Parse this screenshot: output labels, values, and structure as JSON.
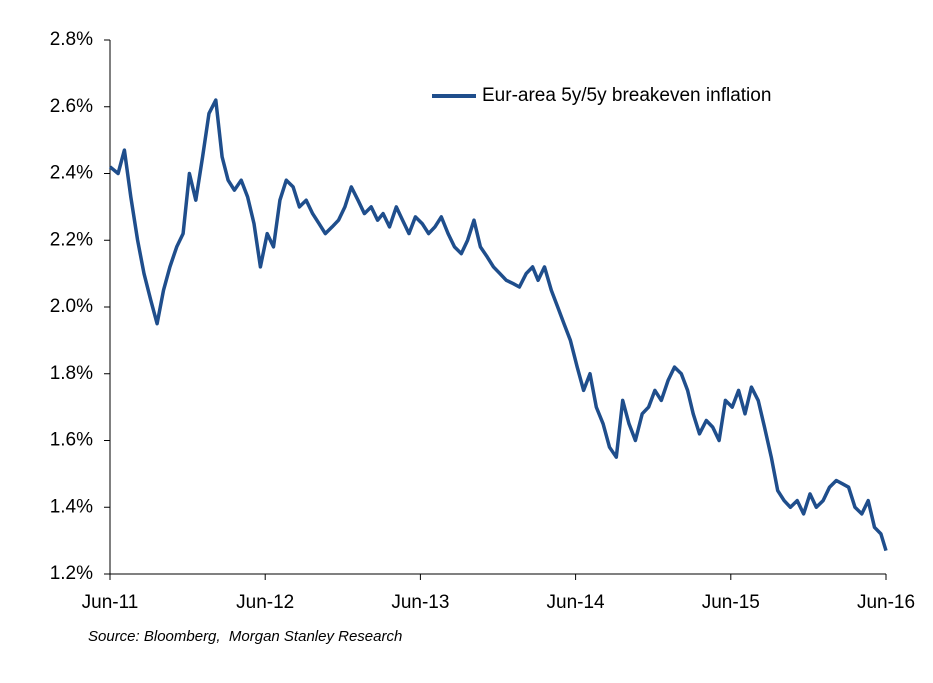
{
  "chart_data": {
    "type": "line",
    "title": "",
    "xlabel": "",
    "ylabel": "",
    "ylim": [
      1.2,
      2.8
    ],
    "yticks": [
      "1.2%",
      "1.4%",
      "1.6%",
      "1.8%",
      "2.0%",
      "2.2%",
      "2.4%",
      "2.6%",
      "2.8%"
    ],
    "xticks": [
      "Jun-11",
      "Jun-12",
      "Jun-13",
      "Jun-14",
      "Jun-15",
      "Jun-16"
    ],
    "xlim": [
      "2011-06",
      "2016-06"
    ],
    "grid": false,
    "legend": "top-right",
    "series": [
      {
        "name": "Eur-area 5y/5y breakeven inflation",
        "color": "#1f4e8c",
        "x": [
          "2011-06-01",
          "2011-06-20",
          "2011-07-05",
          "2011-07-20",
          "2011-08-05",
          "2011-08-20",
          "2011-09-05",
          "2011-09-20",
          "2011-10-05",
          "2011-10-20",
          "2011-11-05",
          "2011-11-20",
          "2011-12-05",
          "2011-12-20",
          "2012-01-05",
          "2012-01-20",
          "2012-02-05",
          "2012-02-20",
          "2012-03-05",
          "2012-03-20",
          "2012-04-05",
          "2012-04-20",
          "2012-05-05",
          "2012-05-20",
          "2012-06-05",
          "2012-06-20",
          "2012-07-05",
          "2012-07-20",
          "2012-08-05",
          "2012-08-20",
          "2012-09-05",
          "2012-09-20",
          "2012-10-05",
          "2012-10-20",
          "2012-11-05",
          "2012-11-20",
          "2012-12-05",
          "2012-12-20",
          "2013-01-05",
          "2013-01-20",
          "2013-02-05",
          "2013-02-20",
          "2013-03-05",
          "2013-03-20",
          "2013-04-05",
          "2013-04-20",
          "2013-05-05",
          "2013-05-20",
          "2013-06-05",
          "2013-06-20",
          "2013-07-05",
          "2013-07-20",
          "2013-08-05",
          "2013-08-20",
          "2013-09-05",
          "2013-09-20",
          "2013-10-05",
          "2013-10-20",
          "2013-11-05",
          "2013-11-20",
          "2013-12-05",
          "2013-12-20",
          "2014-01-05",
          "2014-01-20",
          "2014-02-05",
          "2014-02-20",
          "2014-03-05",
          "2014-03-20",
          "2014-04-05",
          "2014-04-20",
          "2014-05-05",
          "2014-05-20",
          "2014-06-05",
          "2014-06-20",
          "2014-07-05",
          "2014-07-20",
          "2014-08-05",
          "2014-08-20",
          "2014-09-05",
          "2014-09-20",
          "2014-10-05",
          "2014-10-20",
          "2014-11-05",
          "2014-11-20",
          "2014-12-05",
          "2014-12-20",
          "2015-01-05",
          "2015-01-20",
          "2015-02-05",
          "2015-02-20",
          "2015-03-05",
          "2015-03-20",
          "2015-04-05",
          "2015-04-20",
          "2015-05-05",
          "2015-05-20",
          "2015-06-05",
          "2015-06-20",
          "2015-07-05",
          "2015-07-20",
          "2015-08-05",
          "2015-08-20",
          "2015-09-05",
          "2015-09-20",
          "2015-10-05",
          "2015-10-20",
          "2015-11-05",
          "2015-11-20",
          "2015-12-05",
          "2015-12-20",
          "2016-01-05",
          "2016-01-20",
          "2016-02-05",
          "2016-02-20",
          "2016-03-05",
          "2016-03-20",
          "2016-04-05",
          "2016-04-20",
          "2016-05-05",
          "2016-05-20",
          "2016-06-01"
        ],
        "values": [
          2.42,
          2.4,
          2.47,
          2.33,
          2.2,
          2.1,
          2.02,
          1.95,
          2.05,
          2.12,
          2.18,
          2.22,
          2.4,
          2.32,
          2.45,
          2.58,
          2.62,
          2.45,
          2.38,
          2.35,
          2.38,
          2.33,
          2.25,
          2.12,
          2.22,
          2.18,
          2.32,
          2.38,
          2.36,
          2.3,
          2.32,
          2.28,
          2.25,
          2.22,
          2.24,
          2.26,
          2.3,
          2.36,
          2.32,
          2.28,
          2.3,
          2.26,
          2.28,
          2.24,
          2.3,
          2.26,
          2.22,
          2.27,
          2.25,
          2.22,
          2.24,
          2.27,
          2.22,
          2.18,
          2.16,
          2.2,
          2.26,
          2.18,
          2.15,
          2.12,
          2.1,
          2.08,
          2.07,
          2.06,
          2.1,
          2.12,
          2.08,
          2.12,
          2.05,
          2.0,
          1.95,
          1.9,
          1.82,
          1.75,
          1.8,
          1.7,
          1.65,
          1.58,
          1.55,
          1.72,
          1.65,
          1.6,
          1.68,
          1.7,
          1.75,
          1.72,
          1.78,
          1.82,
          1.8,
          1.75,
          1.68,
          1.62,
          1.66,
          1.64,
          1.6,
          1.72,
          1.7,
          1.75,
          1.68,
          1.76,
          1.72,
          1.64,
          1.55,
          1.45,
          1.42,
          1.4,
          1.42,
          1.38,
          1.44,
          1.4,
          1.42,
          1.46,
          1.48,
          1.47,
          1.46,
          1.4,
          1.38,
          1.42,
          1.34,
          1.32,
          1.27
        ]
      }
    ]
  },
  "source": "Source: Bloomberg,  Morgan Stanley Research"
}
